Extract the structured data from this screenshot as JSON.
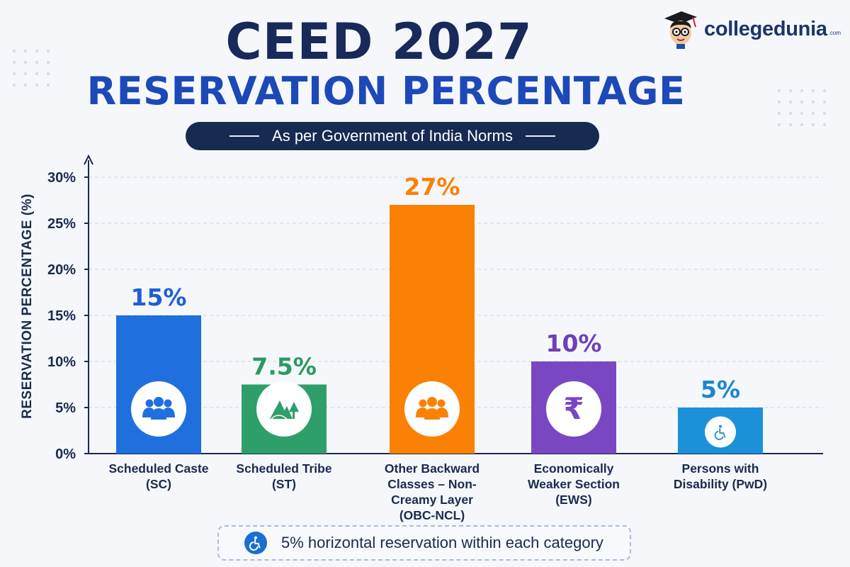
{
  "header": {
    "title_line1": "CEED 2027",
    "title_line2": "RESERVATION PERCENTAGE",
    "subtitle": "As per Government of India Norms"
  },
  "brand": {
    "name": "collegedunia",
    "suffix": ".com"
  },
  "colors": {
    "navy": "#18295a",
    "blue_title": "#1d48b8",
    "sc": "#1f6fde",
    "st": "#2e9f6a",
    "obc": "#fb8105",
    "ews": "#7a47c2",
    "pwd": "#1c90d8"
  },
  "chart_data": {
    "type": "bar",
    "title": "RESERVATION PERCENTAGE",
    "ylabel": "RESERVATION PERCENTAGE (%)",
    "xlabel": "",
    "ylim": [
      0,
      30
    ],
    "yticks": [
      "0%",
      "5%",
      "10%",
      "15%",
      "20%",
      "25%",
      "30%"
    ],
    "ytick_values": [
      0,
      5,
      10,
      15,
      20,
      25,
      30
    ],
    "grid": true,
    "categories": [
      [
        "Scheduled Caste",
        "(SC)"
      ],
      [
        "Scheduled Tribe",
        "(ST)"
      ],
      [
        "Other Backward",
        "Classes – Non-",
        "Creamy Layer",
        "(OBC-NCL)"
      ],
      [
        "Economically",
        "Weaker Section",
        "(EWS)"
      ],
      [
        "Persons with",
        "Disability (PwD)"
      ]
    ],
    "values": [
      15,
      7.5,
      27,
      10,
      5
    ],
    "data_labels": [
      "15%",
      "7.5%",
      "27%",
      "10%",
      "5%"
    ],
    "bar_colors": [
      "#1f6fde",
      "#2e9f6a",
      "#fb8105",
      "#7a47c2",
      "#1c90d8"
    ],
    "label_colors": [
      "#1f5fd1",
      "#2a9a63",
      "#fb8105",
      "#6f3fb8",
      "#1a86cf"
    ],
    "icons": [
      "people-group-icon",
      "mountain-trees-icon",
      "people-group-icon",
      "rupee-icon",
      "wheelchair-icon"
    ]
  },
  "footer_note": {
    "icon": "wheelchair-icon",
    "text": "5% horizontal reservation within each category"
  }
}
